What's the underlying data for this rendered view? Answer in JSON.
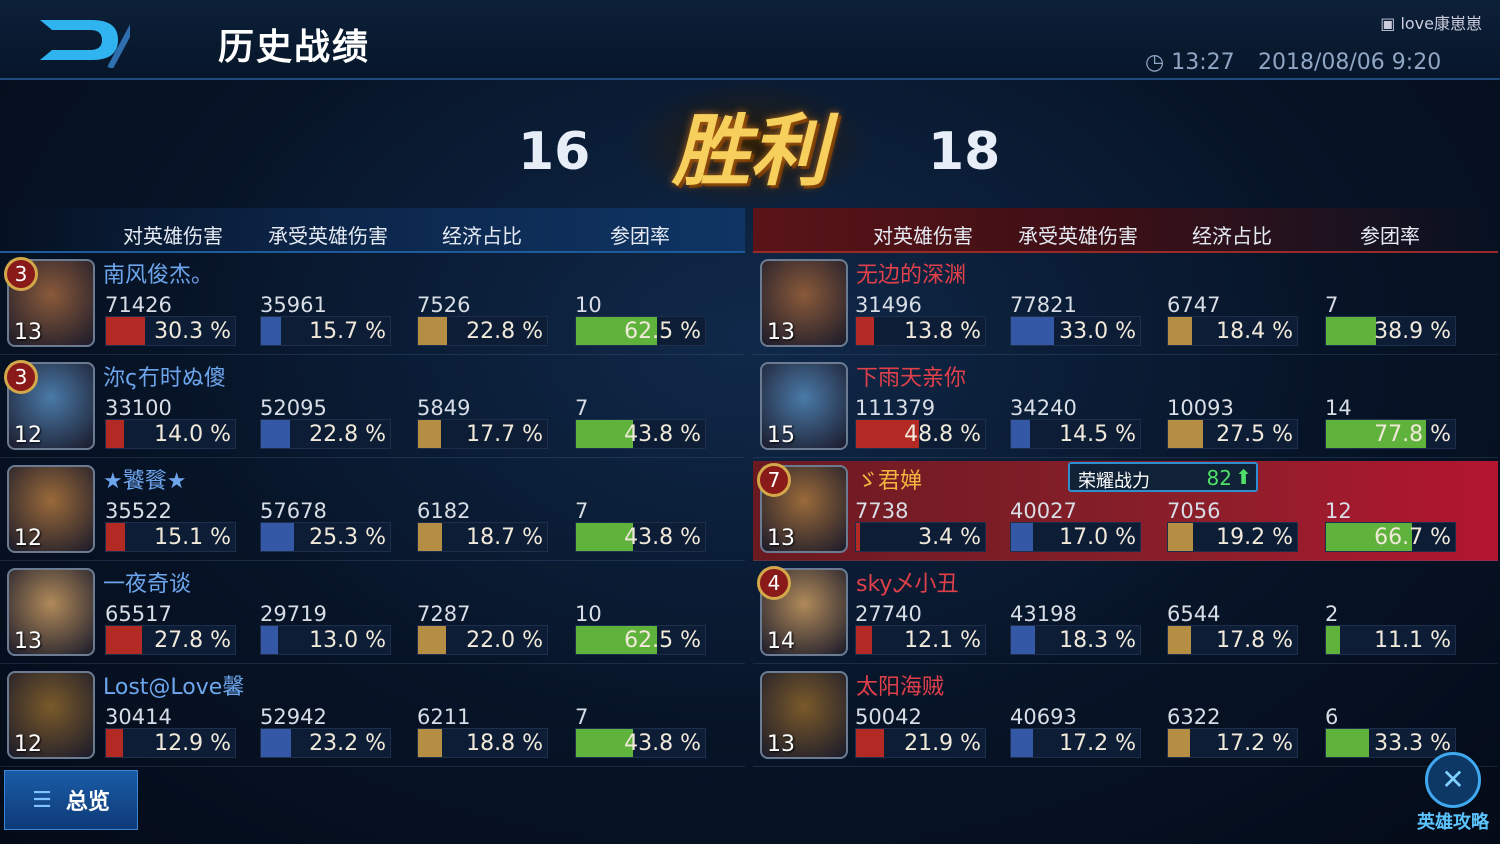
{
  "header": {
    "title": "历史战绩",
    "user": "love康崽崽",
    "duration": "13:27",
    "datetime": "2018/08/06 9:20",
    "back_icon": "back-arrow-icon"
  },
  "score": {
    "left": "16",
    "right": "18",
    "result": "胜利"
  },
  "columns": [
    "对英雄伤害",
    "承受英雄伤害",
    "经济占比",
    "参团率"
  ],
  "colors": {
    "damage": "#b32a24",
    "taken": "#3558a6",
    "economy": "#b58e44",
    "participation": "#5fb23c",
    "left_name": "#6ea6ee",
    "right_name": "#e0404a",
    "highlight_name": "#f2b441"
  },
  "left_team": [
    {
      "name": "南风俊杰。",
      "level": "13",
      "badge": "3",
      "dmg": "71426",
      "dmg_pct": "30.3 %",
      "taken": "35961",
      "taken_pct": "15.7 %",
      "gold": "7526",
      "gold_pct": "22.8 %",
      "kp": "10",
      "kp_pct": "62.5 %",
      "v": [
        30.3,
        15.7,
        22.8,
        62.5
      ]
    },
    {
      "name": "沵ς冇时ぬ傻",
      "level": "12",
      "badge": "3",
      "dmg": "33100",
      "dmg_pct": "14.0 %",
      "taken": "52095",
      "taken_pct": "22.8 %",
      "gold": "5849",
      "gold_pct": "17.7 %",
      "kp": "7",
      "kp_pct": "43.8 %",
      "v": [
        14.0,
        22.8,
        17.7,
        43.8
      ]
    },
    {
      "name": "★饕餮★",
      "level": "12",
      "badge": "",
      "dmg": "35522",
      "dmg_pct": "15.1 %",
      "taken": "57678",
      "taken_pct": "25.3 %",
      "gold": "6182",
      "gold_pct": "18.7 %",
      "kp": "7",
      "kp_pct": "43.8 %",
      "v": [
        15.1,
        25.3,
        18.7,
        43.8
      ]
    },
    {
      "name": "一夜奇谈",
      "level": "13",
      "badge": "",
      "dmg": "65517",
      "dmg_pct": "27.8 %",
      "taken": "29719",
      "taken_pct": "13.0 %",
      "gold": "7287",
      "gold_pct": "22.0 %",
      "kp": "10",
      "kp_pct": "62.5 %",
      "v": [
        27.8,
        13.0,
        22.0,
        62.5
      ]
    },
    {
      "name": "Lost@Love馨",
      "level": "12",
      "badge": "",
      "dmg": "30414",
      "dmg_pct": "12.9 %",
      "taken": "52942",
      "taken_pct": "23.2 %",
      "gold": "6211",
      "gold_pct": "18.8 %",
      "kp": "7",
      "kp_pct": "43.8 %",
      "v": [
        12.9,
        23.2,
        18.8,
        43.8
      ]
    }
  ],
  "right_team": [
    {
      "name": "无边的深渊",
      "level": "13",
      "badge": "",
      "dmg": "31496",
      "dmg_pct": "13.8 %",
      "taken": "77821",
      "taken_pct": "33.0 %",
      "gold": "6747",
      "gold_pct": "18.4 %",
      "kp": "7",
      "kp_pct": "38.9 %",
      "v": [
        13.8,
        33.0,
        18.4,
        38.9
      ]
    },
    {
      "name": "下雨天亲你",
      "level": "15",
      "badge": "",
      "dmg": "111379",
      "dmg_pct": "48.8 %",
      "taken": "34240",
      "taken_pct": "14.5 %",
      "gold": "10093",
      "gold_pct": "27.5 %",
      "kp": "14",
      "kp_pct": "77.8 %",
      "v": [
        48.8,
        14.5,
        27.5,
        77.8
      ]
    },
    {
      "name": "ゞ君婵",
      "level": "13",
      "badge": "7",
      "dmg": "7738",
      "dmg_pct": "3.4 %",
      "taken": "40027",
      "taken_pct": "17.0 %",
      "gold": "7056",
      "gold_pct": "19.2 %",
      "kp": "12",
      "kp_pct": "66.7 %",
      "v": [
        3.4,
        17.0,
        19.2,
        66.7
      ],
      "highlight": true
    },
    {
      "name": "sky乄小丑",
      "level": "14",
      "badge": "4",
      "dmg": "27740",
      "dmg_pct": "12.1 %",
      "taken": "43198",
      "taken_pct": "18.3 %",
      "gold": "6544",
      "gold_pct": "17.8 %",
      "kp": "2",
      "kp_pct": "11.1 %",
      "v": [
        12.1,
        18.3,
        17.8,
        11.1
      ]
    },
    {
      "name": "太阳海贼",
      "level": "13",
      "badge": "",
      "dmg": "50042",
      "dmg_pct": "21.9 %",
      "taken": "40693",
      "taken_pct": "17.2 %",
      "gold": "6322",
      "gold_pct": "17.2 %",
      "kp": "6",
      "kp_pct": "33.3 %",
      "v": [
        21.9,
        17.2,
        17.2,
        33.3
      ]
    }
  ],
  "glory": {
    "label": "荣耀战力",
    "value": "82"
  },
  "footer": {
    "overview": "总览",
    "guide": "英雄攻略"
  }
}
